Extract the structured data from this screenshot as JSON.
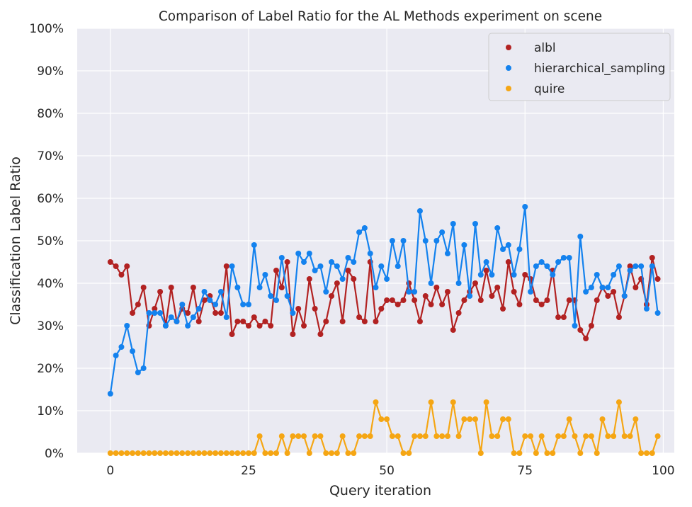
{
  "chart_data": {
    "type": "line",
    "title": "Comparison of Label Ratio for the AL Methods experiment on scene",
    "xlabel": "Query iteration",
    "ylabel": "Classification Label Ratio",
    "xlim": [
      -6,
      102
    ],
    "ylim": [
      0,
      1
    ],
    "xticks": [
      0,
      25,
      50,
      75,
      100
    ],
    "yticks": [
      0,
      0.1,
      0.2,
      0.3,
      0.4,
      0.5,
      0.6,
      0.7,
      0.8,
      0.9,
      1.0
    ],
    "ytick_labels": [
      "0%",
      "10%",
      "20%",
      "30%",
      "40%",
      "50%",
      "60%",
      "70%",
      "80%",
      "90%",
      "100%"
    ],
    "grid": true,
    "legend_position": "top-right",
    "background": "#eaeaf2",
    "grid_color": "#ffffff",
    "series": [
      {
        "name": "albl",
        "color": "#b22222",
        "values": [
          0.45,
          0.44,
          0.42,
          0.44,
          0.33,
          0.35,
          0.39,
          0.3,
          0.34,
          0.38,
          0.3,
          0.39,
          0.31,
          0.34,
          0.33,
          0.39,
          0.31,
          0.36,
          0.37,
          0.33,
          0.33,
          0.44,
          0.28,
          0.31,
          0.31,
          0.3,
          0.32,
          0.3,
          0.31,
          0.3,
          0.43,
          0.39,
          0.45,
          0.28,
          0.34,
          0.3,
          0.41,
          0.34,
          0.28,
          0.31,
          0.37,
          0.4,
          0.31,
          0.43,
          0.41,
          0.32,
          0.31,
          0.45,
          0.31,
          0.34,
          0.36,
          0.36,
          0.35,
          0.36,
          0.4,
          0.36,
          0.31,
          0.37,
          0.35,
          0.39,
          0.35,
          0.38,
          0.29,
          0.33,
          0.36,
          0.38,
          0.4,
          0.36,
          0.43,
          0.37,
          0.39,
          0.34,
          0.45,
          0.38,
          0.35,
          0.42,
          0.41,
          0.36,
          0.35,
          0.36,
          0.43,
          0.32,
          0.32,
          0.36,
          0.36,
          0.29,
          0.27,
          0.3,
          0.36,
          0.39,
          0.37,
          0.38,
          0.32,
          0.37,
          0.44,
          0.39,
          0.41,
          0.35,
          0.46,
          0.41
        ]
      },
      {
        "name": "hierarchical_sampling",
        "color": "#1482ee",
        "values": [
          0.14,
          0.23,
          0.25,
          0.3,
          0.24,
          0.19,
          0.2,
          0.33,
          0.33,
          0.33,
          0.3,
          0.32,
          0.31,
          0.35,
          0.3,
          0.32,
          0.34,
          0.38,
          0.36,
          0.35,
          0.38,
          0.32,
          0.44,
          0.39,
          0.35,
          0.35,
          0.49,
          0.39,
          0.42,
          0.37,
          0.36,
          0.46,
          0.37,
          0.33,
          0.47,
          0.45,
          0.47,
          0.43,
          0.44,
          0.38,
          0.45,
          0.44,
          0.41,
          0.46,
          0.45,
          0.52,
          0.53,
          0.47,
          0.39,
          0.44,
          0.41,
          0.5,
          0.44,
          0.5,
          0.38,
          0.38,
          0.57,
          0.5,
          0.4,
          0.5,
          0.52,
          0.47,
          0.54,
          0.4,
          0.49,
          0.37,
          0.54,
          0.42,
          0.45,
          0.42,
          0.53,
          0.48,
          0.49,
          0.42,
          0.48,
          0.58,
          0.38,
          0.44,
          0.45,
          0.44,
          0.42,
          0.45,
          0.46,
          0.46,
          0.3,
          0.51,
          0.38,
          0.39,
          0.42,
          0.39,
          0.39,
          0.42,
          0.44,
          0.37,
          0.43,
          0.44,
          0.44,
          0.34,
          0.44,
          0.33
        ]
      },
      {
        "name": "quire",
        "color": "#f5a614",
        "values": [
          0,
          0,
          0,
          0,
          0,
          0,
          0,
          0,
          0,
          0,
          0,
          0,
          0,
          0,
          0,
          0,
          0,
          0,
          0,
          0,
          0,
          0,
          0,
          0,
          0,
          0,
          0,
          0.04,
          0,
          0,
          0,
          0.04,
          0,
          0.04,
          0.04,
          0.04,
          0,
          0.04,
          0.04,
          0,
          0,
          0,
          0.04,
          0,
          0,
          0.04,
          0.04,
          0.04,
          0.12,
          0.08,
          0.08,
          0.04,
          0.04,
          0,
          0,
          0.04,
          0.04,
          0.04,
          0.12,
          0.04,
          0.04,
          0.04,
          0.12,
          0.04,
          0.08,
          0.08,
          0.08,
          0,
          0.12,
          0.04,
          0.04,
          0.08,
          0.08,
          0,
          0,
          0.04,
          0.04,
          0,
          0.04,
          0,
          0,
          0.04,
          0.04,
          0.08,
          0.04,
          0,
          0.04,
          0.04,
          0,
          0.08,
          0.04,
          0.04,
          0.12,
          0.04,
          0.04,
          0.08,
          0,
          0,
          0,
          0.04
        ]
      }
    ]
  }
}
